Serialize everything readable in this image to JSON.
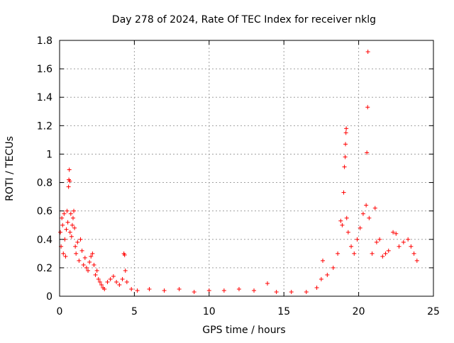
{
  "chart_data": {
    "type": "scatter",
    "title": "Day 278 of 2024, Rate Of TEC Index for receiver nklg",
    "xlabel": "GPS time / hours",
    "ylabel": "ROTI / TECUs",
    "xlim": [
      0,
      25
    ],
    "ylim": [
      0,
      1.8
    ],
    "xticks": [
      0,
      5,
      10,
      15,
      20,
      25
    ],
    "yticks": [
      0,
      0.2,
      0.4,
      0.6,
      0.8,
      1,
      1.2,
      1.4,
      1.6,
      1.8
    ],
    "ytick_labels": [
      "0",
      "0.2",
      "0.4",
      "0.6",
      "0.8",
      "1",
      "1.2",
      "1.4",
      "1.6",
      "1.8"
    ],
    "grid": true,
    "marker": "+",
    "color": "#ff0000",
    "series": [
      {
        "points": [
          [
            0.05,
            0.45
          ],
          [
            0.1,
            0.35
          ],
          [
            0.15,
            0.55
          ],
          [
            0.2,
            0.5
          ],
          [
            0.25,
            0.3
          ],
          [
            0.3,
            0.58
          ],
          [
            0.35,
            0.4
          ],
          [
            0.4,
            0.28
          ],
          [
            0.45,
            0.47
          ],
          [
            0.5,
            0.6
          ],
          [
            0.55,
            0.52
          ],
          [
            0.6,
            0.77
          ],
          [
            0.62,
            0.82
          ],
          [
            0.65,
            0.89
          ],
          [
            0.68,
            0.81
          ],
          [
            0.7,
            0.45
          ],
          [
            0.75,
            0.58
          ],
          [
            0.8,
            0.42
          ],
          [
            0.85,
            0.5
          ],
          [
            0.9,
            0.55
          ],
          [
            0.95,
            0.6
          ],
          [
            1.0,
            0.48
          ],
          [
            1.05,
            0.35
          ],
          [
            1.1,
            0.3
          ],
          [
            1.2,
            0.38
          ],
          [
            1.3,
            0.25
          ],
          [
            1.4,
            0.4
          ],
          [
            1.5,
            0.32
          ],
          [
            1.6,
            0.22
          ],
          [
            1.7,
            0.27
          ],
          [
            1.8,
            0.2
          ],
          [
            1.9,
            0.18
          ],
          [
            2.0,
            0.24
          ],
          [
            2.1,
            0.28
          ],
          [
            2.2,
            0.3
          ],
          [
            2.3,
            0.22
          ],
          [
            2.4,
            0.15
          ],
          [
            2.5,
            0.18
          ],
          [
            2.6,
            0.12
          ],
          [
            2.7,
            0.1
          ],
          [
            2.8,
            0.08
          ],
          [
            2.9,
            0.06
          ],
          [
            3.0,
            0.05
          ],
          [
            3.2,
            0.1
          ],
          [
            3.4,
            0.12
          ],
          [
            3.6,
            0.14
          ],
          [
            3.8,
            0.1
          ],
          [
            4.0,
            0.08
          ],
          [
            4.2,
            0.12
          ],
          [
            4.3,
            0.3
          ],
          [
            4.35,
            0.29
          ],
          [
            4.4,
            0.18
          ],
          [
            4.5,
            0.1
          ],
          [
            4.8,
            0.05
          ],
          [
            5.2,
            0.04
          ],
          [
            6.0,
            0.05
          ],
          [
            7.0,
            0.04
          ],
          [
            8.0,
            0.05
          ],
          [
            9.0,
            0.03
          ],
          [
            10.0,
            0.04
          ],
          [
            11.0,
            0.04
          ],
          [
            12.0,
            0.05
          ],
          [
            13.0,
            0.04
          ],
          [
            13.9,
            0.09
          ],
          [
            14.5,
            0.03
          ],
          [
            15.5,
            0.03
          ],
          [
            16.5,
            0.03
          ],
          [
            17.2,
            0.06
          ],
          [
            17.5,
            0.12
          ],
          [
            17.6,
            0.25
          ],
          [
            17.9,
            0.15
          ],
          [
            18.3,
            0.2
          ],
          [
            18.6,
            0.3
          ],
          [
            18.8,
            0.53
          ],
          [
            18.9,
            0.5
          ],
          [
            19.0,
            0.73
          ],
          [
            19.05,
            0.91
          ],
          [
            19.1,
            0.98
          ],
          [
            19.12,
            1.07
          ],
          [
            19.15,
            1.15
          ],
          [
            19.17,
            1.18
          ],
          [
            19.2,
            0.55
          ],
          [
            19.3,
            0.45
          ],
          [
            19.5,
            0.35
          ],
          [
            19.7,
            0.3
          ],
          [
            19.9,
            0.4
          ],
          [
            20.1,
            0.48
          ],
          [
            20.3,
            0.58
          ],
          [
            20.5,
            0.64
          ],
          [
            20.55,
            1.01
          ],
          [
            20.6,
            1.33
          ],
          [
            20.62,
            1.72
          ],
          [
            20.7,
            0.55
          ],
          [
            20.9,
            0.3
          ],
          [
            21.1,
            0.62
          ],
          [
            21.2,
            0.38
          ],
          [
            21.4,
            0.4
          ],
          [
            21.6,
            0.28
          ],
          [
            21.8,
            0.3
          ],
          [
            22.0,
            0.32
          ],
          [
            22.3,
            0.45
          ],
          [
            22.5,
            0.44
          ],
          [
            22.7,
            0.35
          ],
          [
            23.0,
            0.38
          ],
          [
            23.3,
            0.4
          ],
          [
            23.5,
            0.35
          ],
          [
            23.7,
            0.3
          ],
          [
            23.9,
            0.25
          ]
        ]
      }
    ]
  }
}
